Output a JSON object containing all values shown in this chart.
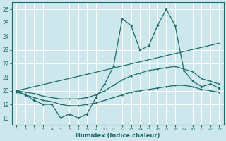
{
  "xlabel": "Humidex (Indice chaleur)",
  "xlim": [
    -0.5,
    23.5
  ],
  "ylim": [
    17.5,
    26.5
  ],
  "yticks": [
    18,
    19,
    20,
    21,
    22,
    23,
    24,
    25,
    26
  ],
  "xticks": [
    0,
    1,
    2,
    3,
    4,
    5,
    6,
    7,
    8,
    9,
    10,
    11,
    12,
    13,
    14,
    15,
    16,
    17,
    18,
    19,
    20,
    21,
    22,
    23
  ],
  "bg_color": "#cce8ec",
  "line_color": "#1a6b6b",
  "grid_color": "#ffffff",
  "lines": [
    {
      "x": [
        0,
        1,
        2,
        3,
        4,
        5,
        6,
        7,
        8,
        9,
        10,
        11,
        12,
        13,
        14,
        15,
        16,
        17,
        18,
        19,
        20,
        21,
        22,
        23
      ],
      "y": [
        20.0,
        19.7,
        19.3,
        19.0,
        19.0,
        18.0,
        18.3,
        18.0,
        18.3,
        19.5,
        20.5,
        21.8,
        25.3,
        24.8,
        23.0,
        23.3,
        24.8,
        26.0,
        24.8,
        21.5,
        20.7,
        20.3,
        20.5,
        20.2
      ]
    },
    {
      "x": [
        0,
        1,
        2,
        3,
        4,
        5,
        6,
        7,
        8,
        9,
        10,
        11,
        12,
        13,
        14,
        15,
        16,
        17,
        18,
        19,
        20,
        21,
        22,
        23
      ],
      "y": [
        20.0,
        19.9,
        19.8,
        19.6,
        19.5,
        19.4,
        19.4,
        19.4,
        19.5,
        19.7,
        20.0,
        20.4,
        20.8,
        21.1,
        21.3,
        21.5,
        21.6,
        21.7,
        21.8,
        21.6,
        21.4,
        20.9,
        20.7,
        20.5
      ]
    },
    {
      "x": [
        0,
        1,
        2,
        3,
        4,
        5,
        6,
        7,
        8,
        9,
        10,
        11,
        12,
        13,
        14,
        15,
        16,
        17,
        18,
        19,
        20,
        21,
        22,
        23
      ],
      "y": [
        19.9,
        19.7,
        19.5,
        19.3,
        19.2,
        19.0,
        18.9,
        18.9,
        19.0,
        19.1,
        19.3,
        19.5,
        19.7,
        19.9,
        20.0,
        20.1,
        20.2,
        20.3,
        20.4,
        20.4,
        20.3,
        20.1,
        20.0,
        19.9
      ]
    },
    {
      "x": [
        0,
        23
      ],
      "y": [
        20.0,
        23.5
      ]
    }
  ]
}
